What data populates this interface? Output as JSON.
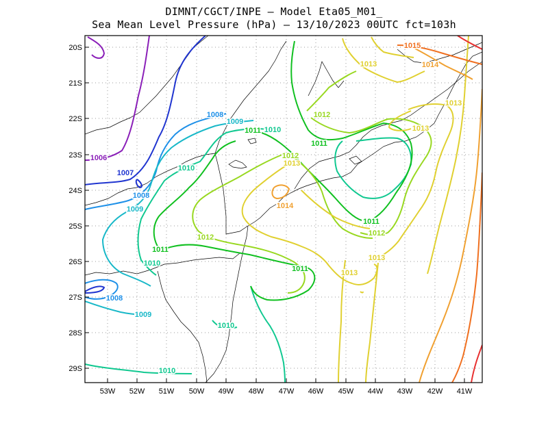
{
  "title": {
    "line1": "DIMNT/CGCT/INPE —  Model Eta05_M01_",
    "line2": "Sea Mean Level Pressure (hPa) — 13/10/2023 00UTC fct=103h"
  },
  "axes": {
    "lon_labels": [
      "53W",
      "52W",
      "51W",
      "50W",
      "49W",
      "48W",
      "47W",
      "46W",
      "45W",
      "44W",
      "43W",
      "42W",
      "41W"
    ],
    "lat_labels": [
      "20S",
      "21S",
      "22S",
      "23S",
      "24S",
      "25S",
      "26S",
      "27S",
      "28S",
      "29S"
    ]
  },
  "contour_colors": {
    "1006": "#8a1fb8",
    "1007": "#2035d0",
    "1008": "#1e90e8",
    "1009": "#18b8c8",
    "1010": "#10c890",
    "1011": "#10c020",
    "1012": "#98d820",
    "1013": "#e0d030",
    "1014": "#f0a030",
    "1015": "#f07020",
    "1016": "#e83030"
  },
  "contour_labels": [
    {
      "text": "1006",
      "level": "1006"
    },
    {
      "text": "1007",
      "level": "1007"
    },
    {
      "text": "1008",
      "level": "1008"
    },
    {
      "text": "1008",
      "level": "1008"
    },
    {
      "text": "1008",
      "level": "1008"
    },
    {
      "text": "1009",
      "level": "1009"
    },
    {
      "text": "1009",
      "level": "1009"
    },
    {
      "text": "1009",
      "level": "1009"
    },
    {
      "text": "1010",
      "level": "1010"
    },
    {
      "text": "1010",
      "level": "1010"
    },
    {
      "text": "1010",
      "level": "1010"
    },
    {
      "text": "1010",
      "level": "1010"
    },
    {
      "text": "1010",
      "level": "1010"
    },
    {
      "text": "1011",
      "level": "1011"
    },
    {
      "text": "1011",
      "level": "1011"
    },
    {
      "text": "1011",
      "level": "1011"
    },
    {
      "text": "1011",
      "level": "1011"
    },
    {
      "text": "1011",
      "level": "1011"
    },
    {
      "text": "1012",
      "level": "1012"
    },
    {
      "text": "1012",
      "level": "1012"
    },
    {
      "text": "1012",
      "level": "1012"
    },
    {
      "text": "1012",
      "level": "1012"
    },
    {
      "text": "1013",
      "level": "1013"
    },
    {
      "text": "1013",
      "level": "1013"
    },
    {
      "text": "1013",
      "level": "1013"
    },
    {
      "text": "1013",
      "level": "1013"
    },
    {
      "text": "1013",
      "level": "1013"
    },
    {
      "text": "1013",
      "level": "1013"
    },
    {
      "text": "1014",
      "level": "1014"
    },
    {
      "text": "1014",
      "level": "1014"
    },
    {
      "text": "1015",
      "level": "1015"
    }
  ]
}
